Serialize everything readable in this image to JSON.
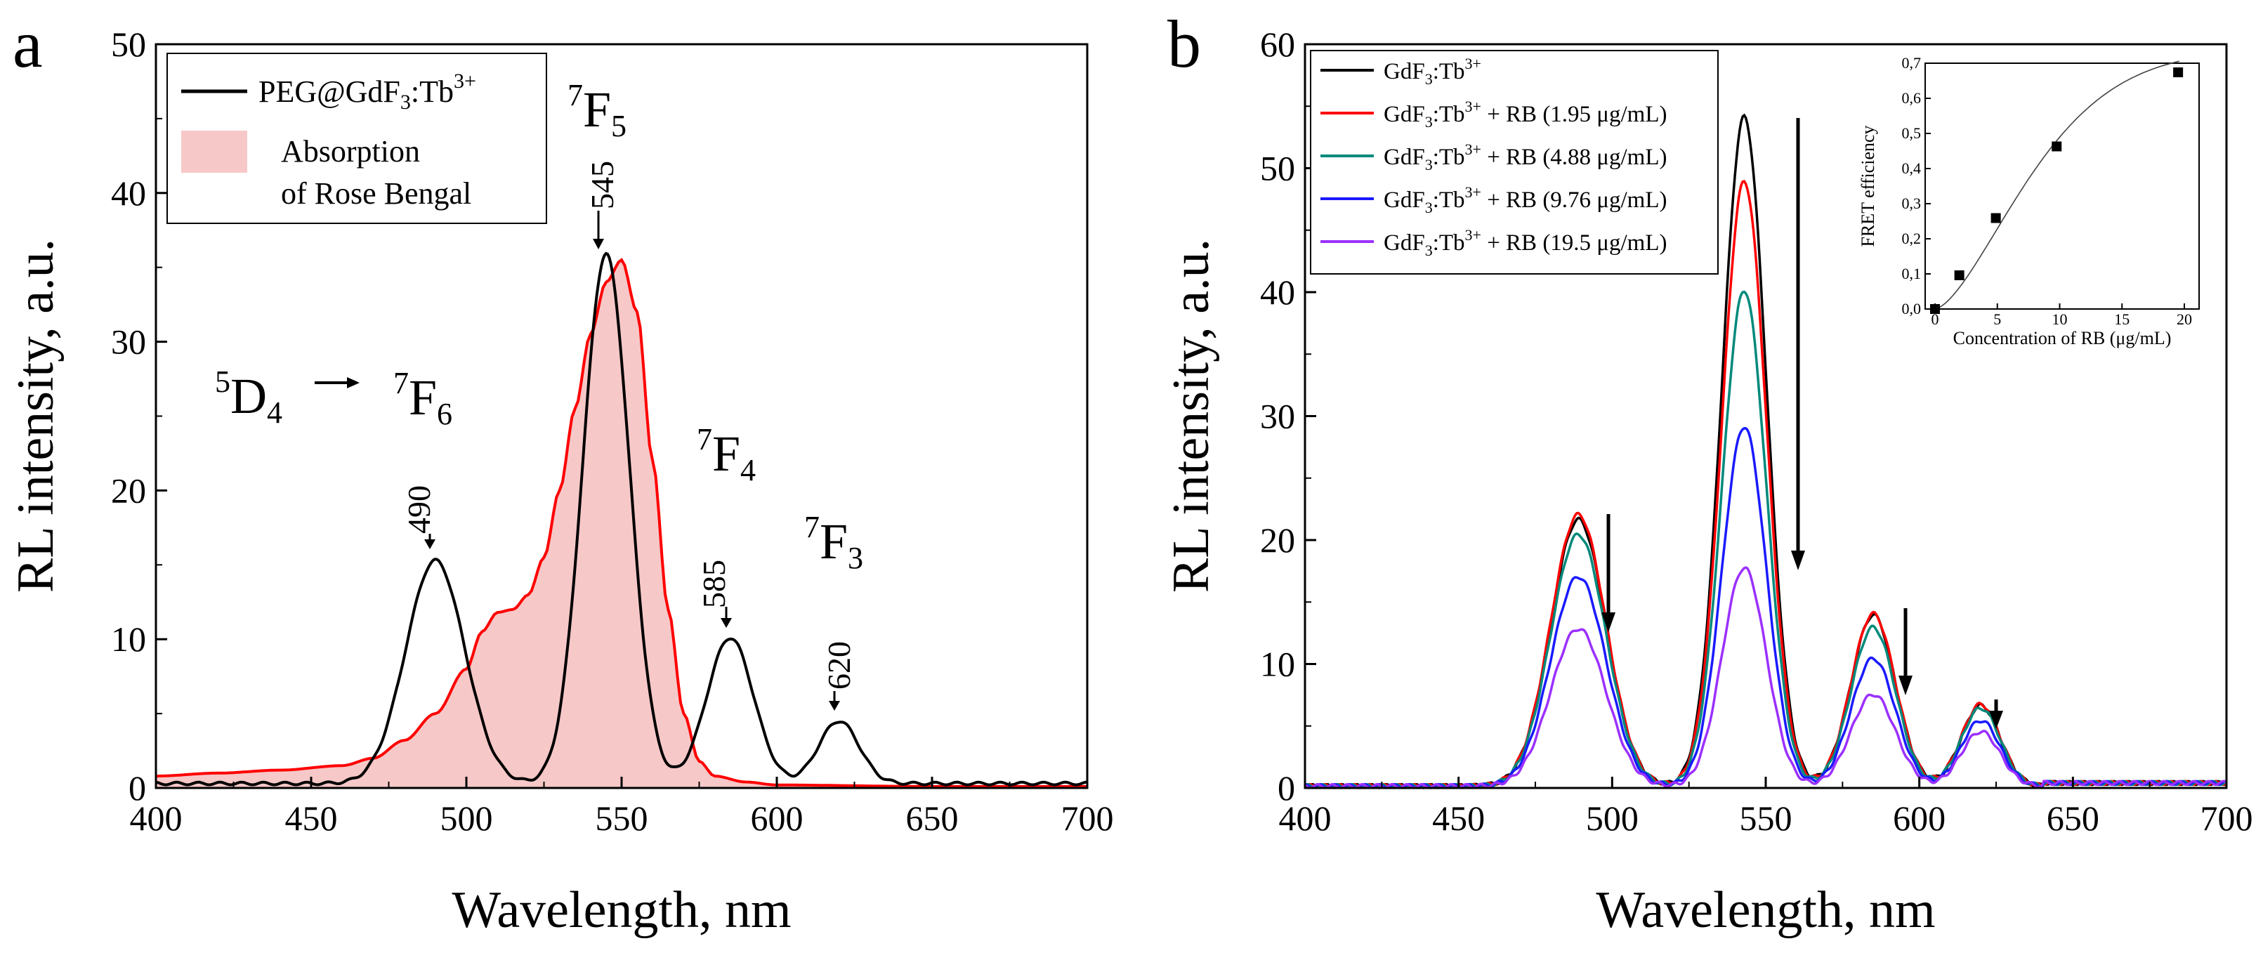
{
  "chart_data": [
    {
      "panel": "a",
      "type": "line",
      "xlabel": "Wavelength, nm",
      "ylabel": "RL intensity,  a.u.",
      "xlim": [
        400,
        700
      ],
      "ylim": [
        0,
        50
      ],
      "xticks": [
        400,
        450,
        500,
        550,
        600,
        650,
        700
      ],
      "yticks": [
        0,
        10,
        20,
        30,
        40,
        50
      ],
      "legend": {
        "placement": "top-left",
        "entries": [
          "PEG@GdF3:Tb3+",
          "Absorption of Rose Bengal"
        ],
        "entry1_base": "PEG@GdF",
        "entry1_sub": "3",
        "entry1_mid": ":Tb",
        "entry1_sup": "3+",
        "entry2_line1": "Absorption",
        "entry2_line2": "of Rose Bengal"
      },
      "series": [
        {
          "name": "PEG@GdF3:Tb3+",
          "color": "#000000",
          "style": "line",
          "peaks": [
            {
              "center": 490,
              "height": 15.0
            },
            {
              "center": 545,
              "height": 35.6
            },
            {
              "center": 585,
              "height": 9.8
            },
            {
              "center": 620,
              "height": 4.2
            }
          ],
          "baseline": 0.3
        },
        {
          "name": "Absorption of Rose Bengal",
          "color": "#ff0000",
          "fill": "#f7c8c8",
          "style": "area",
          "points": [
            [
              400,
              0.8
            ],
            [
              420,
              1.0
            ],
            [
              440,
              1.2
            ],
            [
              460,
              1.5
            ],
            [
              470,
              2.0
            ],
            [
              480,
              3.2
            ],
            [
              490,
              5.0
            ],
            [
              500,
              8.0
            ],
            [
              505,
              10.5
            ],
            [
              510,
              11.8
            ],
            [
              515,
              12.0
            ],
            [
              520,
              13.0
            ],
            [
              525,
              15.5
            ],
            [
              530,
              20.0
            ],
            [
              535,
              25.5
            ],
            [
              540,
              30.5
            ],
            [
              545,
              34.0
            ],
            [
              550,
              35.5
            ],
            [
              555,
              32.0
            ],
            [
              560,
              22.0
            ],
            [
              565,
              12.0
            ],
            [
              570,
              5.0
            ],
            [
              575,
              1.8
            ],
            [
              580,
              0.8
            ],
            [
              590,
              0.4
            ],
            [
              600,
              0.2
            ],
            [
              650,
              0.1
            ],
            [
              700,
              0.1
            ]
          ]
        }
      ],
      "annotations": {
        "transition_5D4": {
          "pre": "5",
          "main": "D",
          "sub": "4"
        },
        "level_7F6": {
          "pre": "7",
          "main": "F",
          "sub": "6"
        },
        "level_7F5": {
          "pre": "7",
          "main": "F",
          "sub": "5"
        },
        "level_7F4": {
          "pre": "7",
          "main": "F",
          "sub": "4"
        },
        "level_7F3": {
          "pre": "7",
          "main": "F",
          "sub": "3"
        },
        "peak_labels": [
          "490",
          "545",
          "585",
          "620"
        ]
      }
    },
    {
      "panel": "b",
      "type": "line",
      "xlabel": "Wavelength, nm",
      "ylabel": "RL intensity,  a.u.",
      "xlim": [
        400,
        700
      ],
      "ylim": [
        0,
        60
      ],
      "xticks": [
        400,
        450,
        500,
        550,
        600,
        650,
        700
      ],
      "yticks": [
        0,
        10,
        20,
        30,
        40,
        50,
        60
      ],
      "legend": {
        "placement": "top-left"
      },
      "series": [
        {
          "name": "GdF3:Tb3+",
          "suffix": "",
          "color": "#000000",
          "peaks": [
            21.5,
            54.0,
            13.8,
            6.5
          ]
        },
        {
          "name": "GdF3:Tb3+ + RB (1.95 μg/mL)",
          "suffix": " + RB (1.95 μg/mL)",
          "color": "#ff0000",
          "peaks": [
            21.9,
            48.8,
            13.9,
            6.6
          ]
        },
        {
          "name": "GdF3:Tb3+ + RB (4.88 μg/mL)",
          "suffix": " + RB (4.88 μg/mL)",
          "color": "#00897b",
          "peaks": [
            20.3,
            40.0,
            12.8,
            6.3
          ]
        },
        {
          "name": "GdF3:Tb3+ + RB (9.76 μg/mL)",
          "suffix": " + RB (9.76 μg/mL)",
          "color": "#1a1aff",
          "peaks": [
            16.9,
            29.0,
            10.3,
            5.3
          ]
        },
        {
          "name": "GdF3:Tb3+ + RB (19.5 μg/mL)",
          "suffix": " + RB (19.5 μg/mL)",
          "color": "#9b30ff",
          "peaks": [
            12.7,
            17.6,
            7.4,
            4.4
          ]
        }
      ],
      "peak_centers": [
        489,
        543,
        585,
        620
      ],
      "inset": {
        "type": "scatter",
        "xlabel": "Concentration of RB (μg/mL)",
        "ylabel": "FRET efficiency",
        "xlim": [
          0,
          20
        ],
        "ylim": [
          0,
          0.7
        ],
        "xticks": [
          "0",
          "5",
          "10",
          "15",
          "20"
        ],
        "yticks": [
          "0,0",
          "0,1",
          "0,2",
          "0,3",
          "0,4",
          "0,5",
          "0,6",
          "0,7"
        ],
        "points": [
          [
            0,
            0.0
          ],
          [
            1.95,
            0.096
          ],
          [
            4.88,
            0.259
          ],
          [
            9.76,
            0.463
          ],
          [
            19.5,
            0.674
          ]
        ]
      }
    }
  ],
  "labels": {
    "panel_a": "a",
    "panel_b": "b",
    "leg_base": "GdF",
    "leg_sub": "3",
    "leg_mid": ":Tb",
    "leg_sup": "3+"
  }
}
